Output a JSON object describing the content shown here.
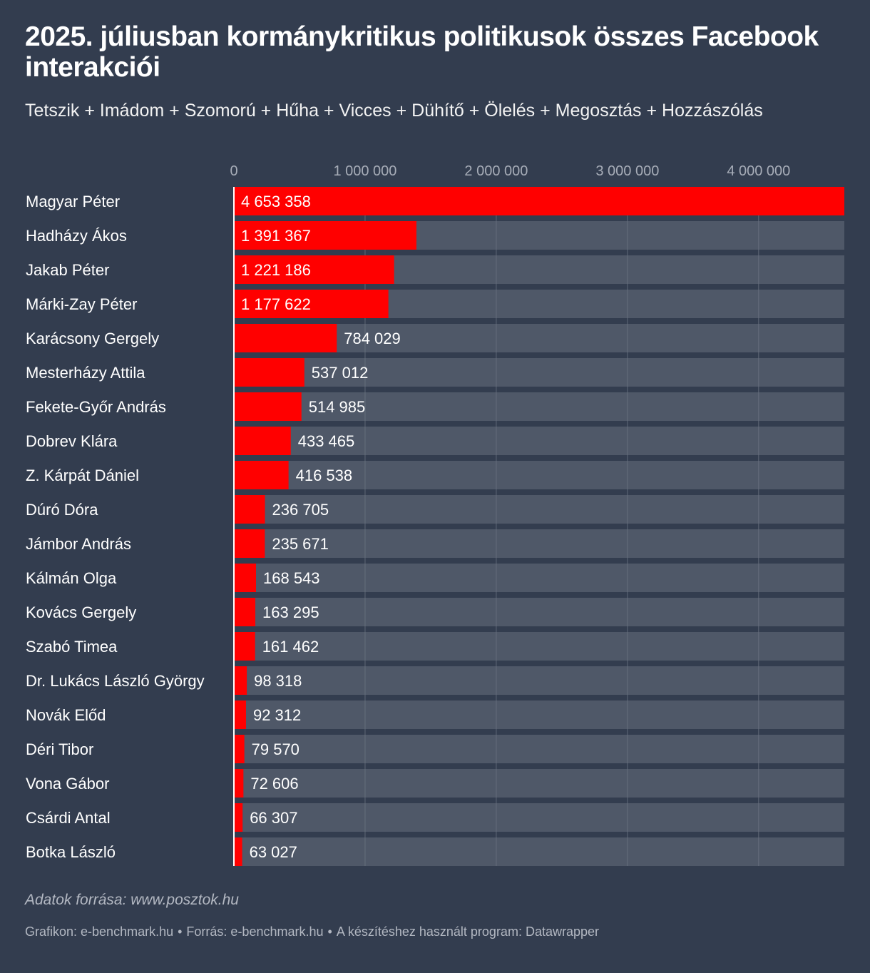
{
  "chart_data": {
    "type": "bar",
    "orientation": "horizontal",
    "title": "2025. júliusban kormánykritikus politikusok összes Facebook interakciói",
    "subtitle": "Tetszik + Imádom + Szomorú + Hűha + Vicces + Dühítő + Ölelés + Megosztás + Hozzászólás",
    "categories": [
      "Magyar Péter",
      "Hadházy Ákos",
      "Jakab Péter",
      "Márki-Zay Péter",
      "Karácsony Gergely",
      "Mesterházy Attila",
      "Fekete-Győr András",
      "Dobrev Klára",
      "Z. Kárpát Dániel",
      "Dúró Dóra",
      "Jámbor András",
      "Kálmán Olga",
      "Kovács Gergely",
      "Szabó Timea",
      "Dr. Lukács László György",
      "Novák Előd",
      "Déri Tibor",
      "Vona Gábor",
      "Csárdi Antal",
      "Botka László"
    ],
    "values": [
      4653358,
      1391367,
      1221186,
      1177622,
      784029,
      537012,
      514985,
      433465,
      416538,
      236705,
      235671,
      168543,
      163295,
      161462,
      98318,
      92312,
      79570,
      72606,
      66307,
      63027
    ],
    "value_labels": [
      "4 653 358",
      "1 391 367",
      "1 221 186",
      "1 177 622",
      "784 029",
      "537 012",
      "514 985",
      "433 465",
      "416 538",
      "236 705",
      "235 671",
      "168 543",
      "163 295",
      "161 462",
      "98 318",
      "92 312",
      "79 570",
      "72 606",
      "66 307",
      "63 027"
    ],
    "xticks": [
      0,
      1000000,
      2000000,
      3000000,
      4000000
    ],
    "xtick_labels": [
      "0",
      "1 000 000",
      "2 000 000",
      "3 000 000",
      "4 000 000"
    ],
    "xlim": [
      0,
      4653358
    ],
    "grid": true,
    "legend": "none"
  },
  "footer": {
    "source_note": "Adatok forrása: www.posztok.hu",
    "credits": [
      "Grafikon: e-benchmark.hu",
      "Forrás: e-benchmark.hu",
      "A készítéshez használt program: Datawrapper"
    ],
    "separator": "•"
  },
  "colors": {
    "background": "#333d4f",
    "bar": "#ff0000",
    "bar_track": "#4f5868",
    "grid": "#6b7382",
    "axis_line": "#ffffff",
    "tick_label": "#a7adb8",
    "text": "#ffffff"
  }
}
